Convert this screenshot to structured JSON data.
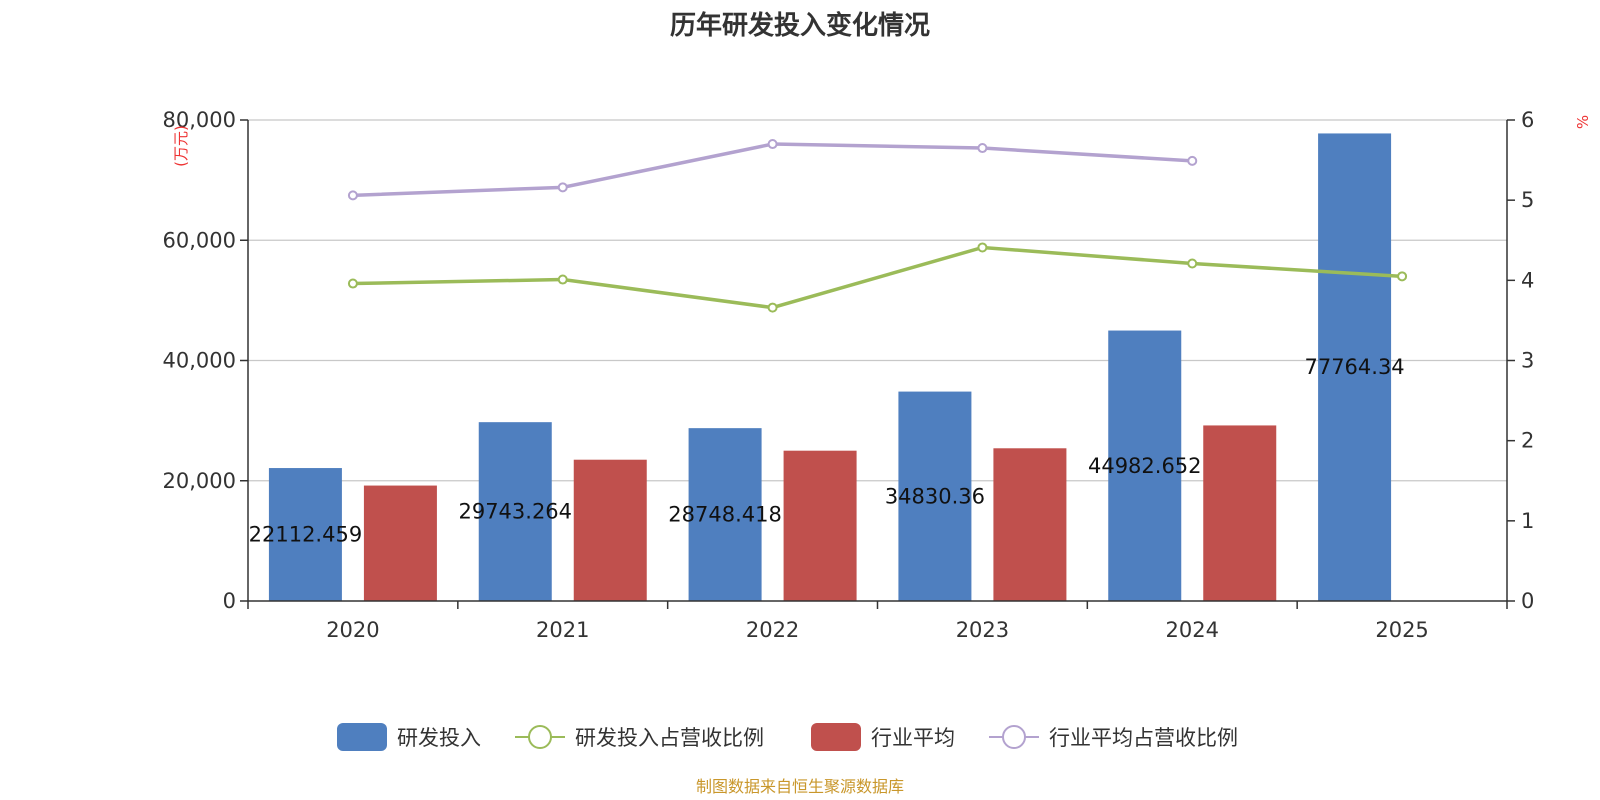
{
  "chart_data": {
    "type": "bar",
    "title": "历年研发投入变化情况",
    "categories": [
      "2020",
      "2021",
      "2022",
      "2023",
      "2024",
      "2025"
    ],
    "y_left": {
      "unit": "(万元)",
      "range": [
        0,
        80000
      ],
      "ticks": [
        0,
        20000,
        40000,
        60000,
        80000
      ],
      "tick_labels": [
        "0",
        "20,000",
        "40,000",
        "60,000",
        "80,000"
      ]
    },
    "y_right": {
      "unit": "%",
      "range": [
        0,
        6
      ],
      "ticks": [
        0,
        1,
        2,
        3,
        4,
        5,
        6
      ],
      "tick_labels": [
        "0",
        "1",
        "2",
        "3",
        "4",
        "5",
        "6"
      ]
    },
    "grid": true,
    "legend_position": "bottom",
    "series": [
      {
        "name": "研发投入",
        "type": "bar",
        "axis": "left",
        "color": "#4f7fbf",
        "values": [
          22112.459,
          29743.264,
          28748.418,
          34830.36,
          44982.652,
          77764.34
        ],
        "data_labels": [
          "22112.459",
          "29743.264",
          "28748.418",
          "34830.36",
          "44982.652",
          "77764.34"
        ]
      },
      {
        "name": "研发投入占营收比例",
        "type": "line",
        "axis": "right",
        "color": "#9bbb59",
        "values": [
          3.96,
          4.01,
          3.66,
          4.41,
          4.21,
          4.05
        ]
      },
      {
        "name": "行业平均",
        "type": "bar",
        "axis": "left",
        "color": "#c0504d",
        "values": [
          19200,
          23500,
          25000,
          25400,
          29200,
          null
        ]
      },
      {
        "name": "行业平均占营收比例",
        "type": "line",
        "axis": "right",
        "color": "#b3a2cf",
        "values": [
          5.06,
          5.16,
          5.7,
          5.65,
          5.49,
          null
        ]
      }
    ]
  },
  "source_text": "制图数据来自恒生聚源数据库"
}
